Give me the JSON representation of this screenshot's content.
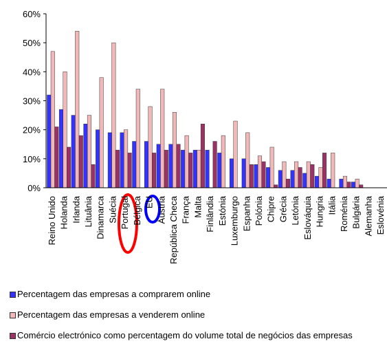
{
  "chart_data": {
    "type": "bar",
    "categories": [
      "Reino Unido",
      "Holanda",
      "Irlanda",
      "Lituânia",
      "Dinamarca",
      "Suécia",
      "Portugal",
      "Bélgica",
      "EU",
      "Áustria",
      "República Checa",
      "França",
      "Malta",
      "Finlândia",
      "Estónia",
      "Luxemburgo",
      "Espanha",
      "Polónia",
      "Chipre",
      "Grécia",
      "Letónia",
      "Eslováquia",
      "Hungria",
      "Itália",
      "Roménia",
      "Bulgária",
      "Alemanha",
      "Eslovénia"
    ],
    "series": [
      {
        "name": "Percentagem das empresas a comprarem online",
        "color": "#3333ff",
        "values": [
          32,
          27,
          25,
          22,
          20,
          19,
          19,
          16,
          16,
          15,
          15,
          13,
          13,
          13,
          12,
          10,
          10,
          8,
          7,
          6,
          6,
          5,
          4,
          3,
          3,
          2,
          null,
          null
        ]
      },
      {
        "name": "Percentagem das empresas a venderem online",
        "color": "#f2b8b8",
        "values": [
          47,
          40,
          54,
          25,
          38,
          50,
          20,
          34,
          28,
          34,
          26,
          18,
          13,
          null,
          18,
          23,
          19,
          11,
          14,
          9,
          9,
          9,
          7,
          12,
          4,
          3,
          null,
          null
        ]
      },
      {
        "name": "Comércio electrónico como percentagem do volume total de negócios das empresas",
        "color": "#993366",
        "values": [
          21,
          14,
          18,
          8,
          null,
          13,
          12,
          null,
          12,
          13,
          15,
          12,
          22,
          16,
          null,
          null,
          8,
          9,
          1,
          3,
          7,
          8,
          12,
          null,
          2,
          1,
          null,
          null
        ]
      }
    ],
    "ylim": [
      0,
      60
    ],
    "yticks": [
      {
        "value": 0,
        "label": "0%"
      },
      {
        "value": 10,
        "label": "10%"
      },
      {
        "value": 20,
        "label": "20%"
      },
      {
        "value": 30,
        "label": "30%"
      },
      {
        "value": 40,
        "label": "40%"
      },
      {
        "value": 50,
        "label": "50%"
      },
      {
        "value": 60,
        "label": "60%"
      }
    ]
  }
}
